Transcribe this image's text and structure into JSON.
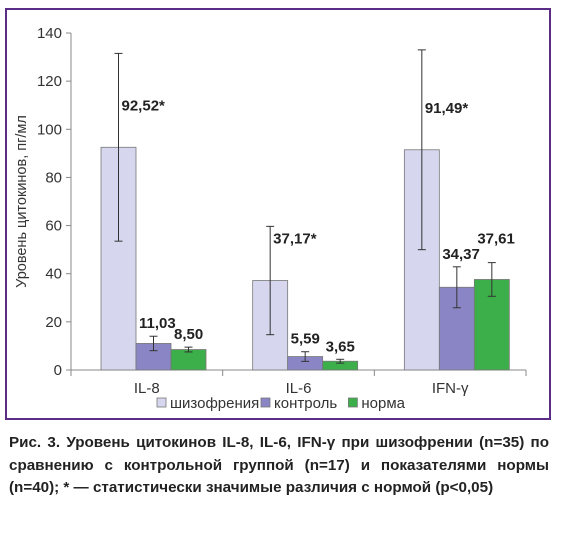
{
  "chart_data": {
    "type": "bar",
    "categories": [
      "IL-8",
      "IL-6",
      "IFN-γ"
    ],
    "ylabel": "Уровень цитокинов, пг/мл",
    "xlabel": "",
    "ylim": [
      0,
      140
    ],
    "yticks": [
      0,
      20,
      40,
      60,
      80,
      100,
      120,
      140
    ],
    "grid": false,
    "legend_position": "bottom",
    "error_bars": true,
    "series": [
      {
        "name": "шизофрения",
        "color": "#d6d6ee",
        "values": [
          92.52,
          37.17,
          91.49
        ],
        "labels": [
          "92,52*",
          "37,17*",
          "91,49*"
        ],
        "errors": [
          39,
          22.5,
          41.5
        ]
      },
      {
        "name": "контроль",
        "color": "#8a86c6",
        "values": [
          11.03,
          5.59,
          34.37
        ],
        "labels": [
          "11,03",
          "5,59",
          "34,37"
        ],
        "errors": [
          3,
          2,
          8.5
        ]
      },
      {
        "name": "норма",
        "color": "#3cae4a",
        "values": [
          8.5,
          3.65,
          37.61
        ],
        "labels": [
          "8,50",
          "3,65",
          "37,61"
        ],
        "errors": [
          1,
          0.8,
          7
        ]
      }
    ]
  },
  "caption": "Рис. 3. Уровень цитокинов IL-8, IL-6, IFN-γ при шизофрении (n=35) по сравнению с контрольной группой (n=17) и показателями нормы (n=40); * — статистически значимые различия с нормой (р<0,05)"
}
